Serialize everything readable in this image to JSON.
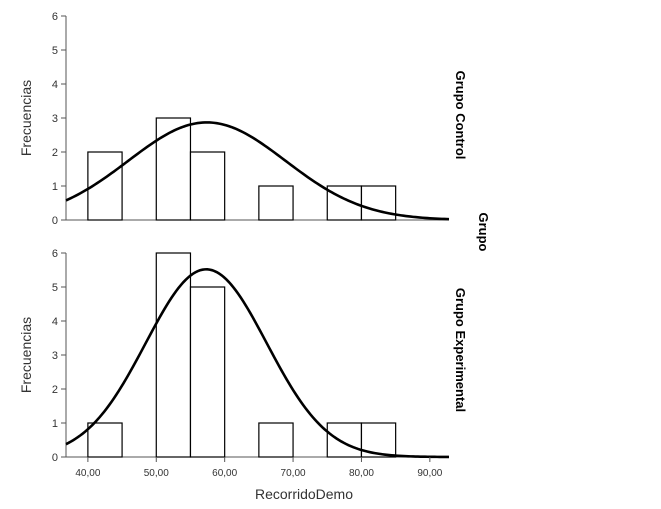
{
  "chart_data": {
    "type": "histogram",
    "xlabel": "RecorridoDemo",
    "ylabel": "Frecuencias",
    "facet_label": "Grupo",
    "x_ticks": [
      "40,00",
      "50,00",
      "60,00",
      "70,00",
      "80,00",
      "90,00"
    ],
    "x_tick_values": [
      40,
      50,
      60,
      70,
      80,
      90
    ],
    "xlim": [
      36.8,
      92.8
    ],
    "bin_edges": [
      40,
      45,
      50,
      55,
      60,
      65,
      70,
      75,
      80,
      85
    ],
    "panels": [
      {
        "name": "Grupo Control",
        "counts": [
          2,
          0,
          3,
          2,
          0,
          1,
          0,
          1,
          1
        ],
        "y_ticks": [
          "0",
          "1",
          "2",
          "3",
          "4",
          "5",
          "6"
        ],
        "ylim": [
          0,
          6
        ],
        "normal_curve": {
          "mean": 57.4,
          "sd": 11.5,
          "peak": 2.87
        }
      },
      {
        "name": "Grupo Experimental",
        "counts": [
          1,
          0,
          6,
          5,
          0,
          1,
          0,
          1,
          1
        ],
        "y_ticks": [
          "0",
          "1",
          "2",
          "3",
          "4",
          "5",
          "6"
        ],
        "ylim": [
          0,
          6
        ],
        "normal_curve": {
          "mean": 57.3,
          "sd": 8.85,
          "peak": 5.52
        }
      }
    ]
  }
}
